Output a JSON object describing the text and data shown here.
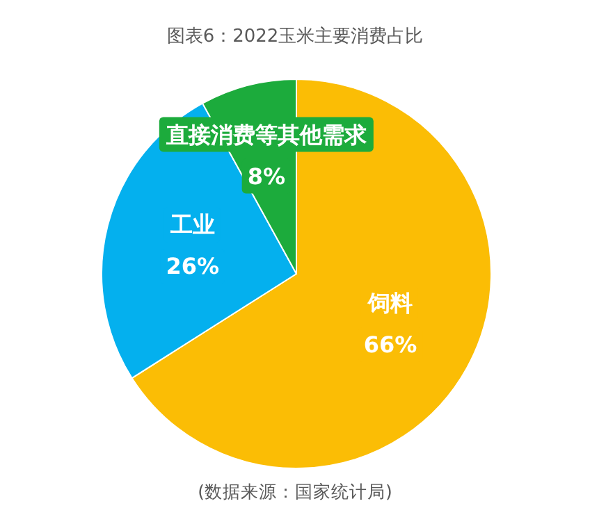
{
  "chart_data": {
    "type": "pie",
    "title": "图表6：2022玉米主要消费占比",
    "categories": [
      "饲料",
      "工业",
      "直接消费等其他需求"
    ],
    "values": [
      66,
      26,
      8
    ],
    "colors": [
      "#fbbd05",
      "#04b0ee",
      "#1cab3c"
    ],
    "value_labels": [
      "66%",
      "26%",
      "8%"
    ],
    "annotations": [
      "(数据来源：国家统计局)"
    ]
  }
}
